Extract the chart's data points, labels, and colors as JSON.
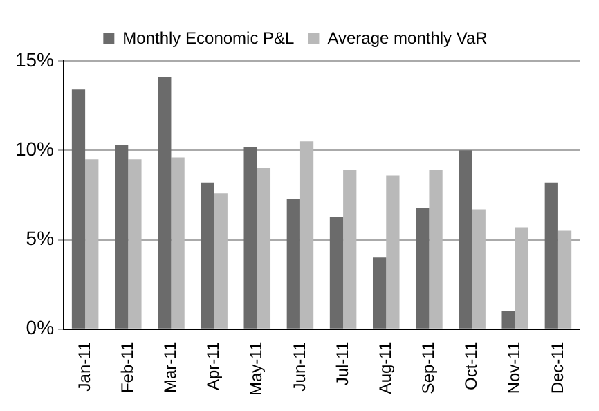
{
  "chart_data": {
    "type": "bar",
    "categories": [
      "Jan-11",
      "Feb-11",
      "Mar-11",
      "Apr-11",
      "May-11",
      "Jun-11",
      "Jul-11",
      "Aug-11",
      "Sep-11",
      "Oct-11",
      "Nov-11",
      "Dec-11"
    ],
    "series": [
      {
        "name": "Monthly Economic P&L",
        "color": "#6b6b6b",
        "values": [
          13.4,
          10.3,
          14.1,
          8.2,
          10.2,
          7.3,
          6.3,
          4.0,
          6.8,
          10.0,
          1.0,
          8.2
        ]
      },
      {
        "name": "Average monthly VaR",
        "color": "#b9b9b9",
        "values": [
          9.5,
          9.5,
          9.6,
          7.6,
          9.0,
          10.5,
          8.9,
          8.6,
          8.9,
          6.7,
          5.7,
          5.5
        ]
      }
    ],
    "ylim": [
      0,
      15
    ],
    "yticks": [
      {
        "value": 0,
        "label": "0%"
      },
      {
        "value": 5,
        "label": "5%"
      },
      {
        "value": 10,
        "label": "10%"
      },
      {
        "value": 15,
        "label": "15%"
      }
    ],
    "grid": "y",
    "legend": "top"
  }
}
